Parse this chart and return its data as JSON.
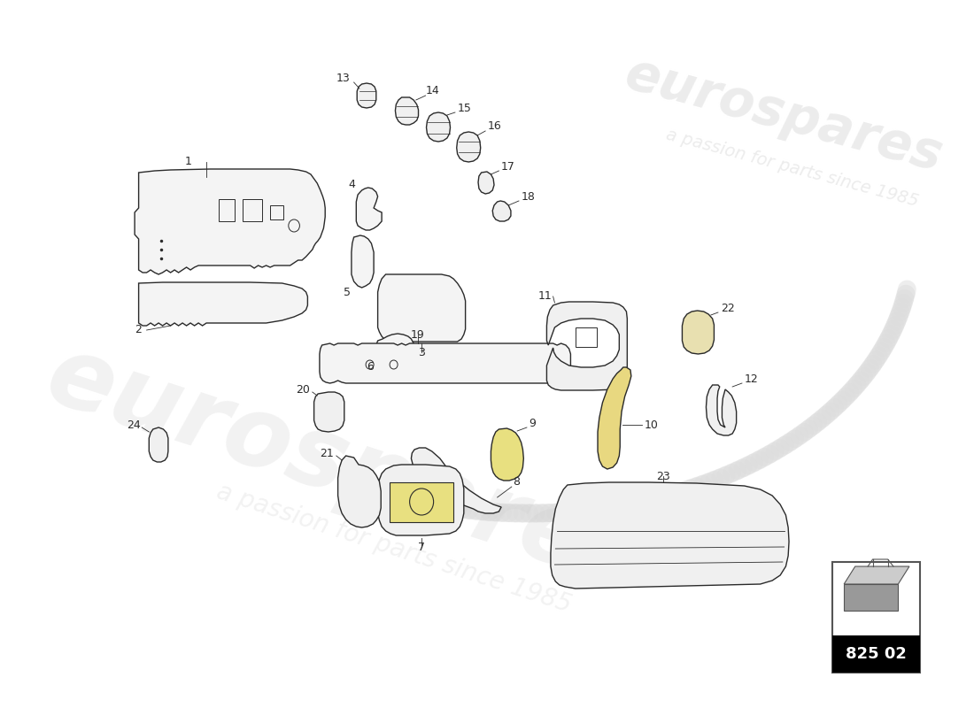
{
  "background_color": "#ffffff",
  "line_color": "#2a2a2a",
  "part_number": "825 02",
  "watermark1": "eurospares",
  "watermark2": "a passion for parts since 1985",
  "label_fontsize": 9,
  "lw": 1.0
}
